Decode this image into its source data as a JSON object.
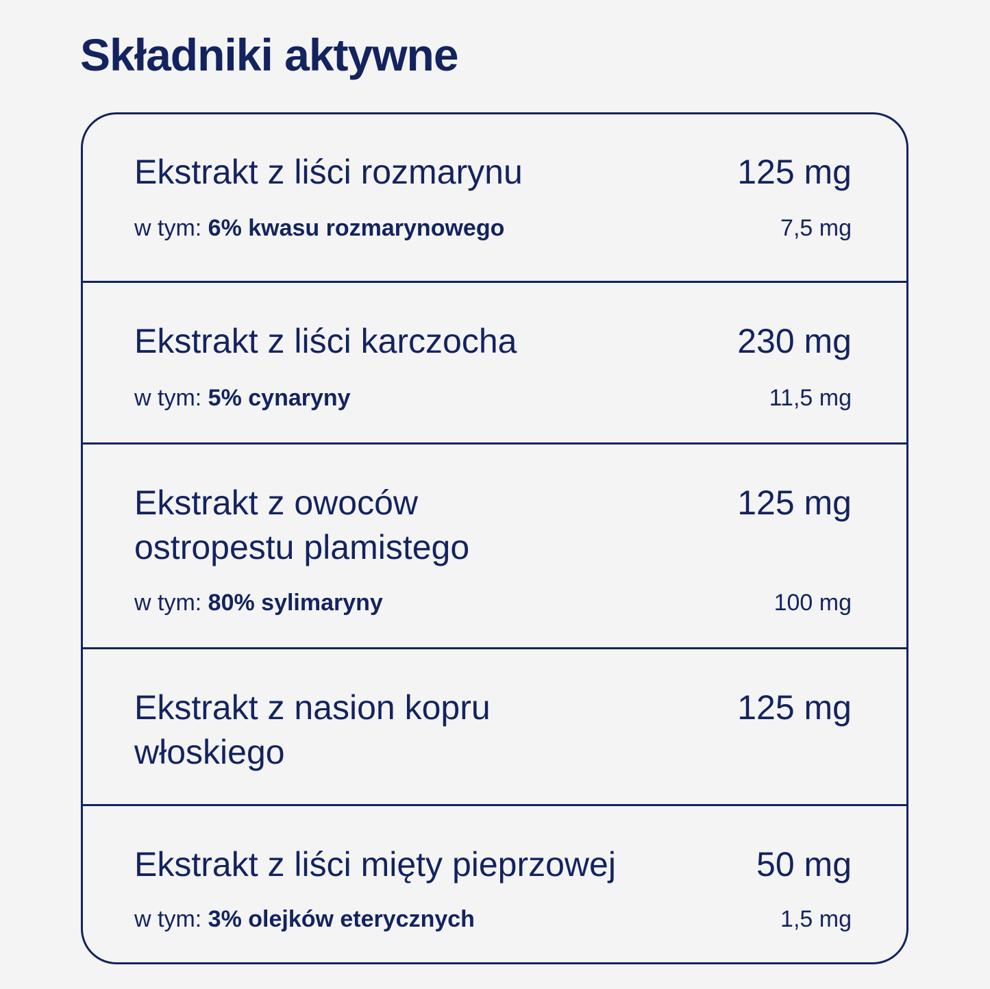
{
  "title": "Składniki aktywne",
  "ingredients": [
    {
      "name": "Ekstrakt z liści rozmarynu",
      "amount": "125 mg",
      "sub_prefix": "w tym:",
      "sub_detail": "6% kwasu rozmarynowego",
      "sub_amount": "7,5 mg"
    },
    {
      "name": "Ekstrakt z liści karczocha",
      "amount": "230 mg",
      "sub_prefix": "w tym:",
      "sub_detail": "5% cynaryny",
      "sub_amount": "11,5 mg"
    },
    {
      "name": "Ekstrakt z owoców ostropestu plamistego",
      "amount": "125 mg",
      "sub_prefix": "w tym:",
      "sub_detail": "80% sylimaryny",
      "sub_amount": "100 mg"
    },
    {
      "name": "Ekstrakt z nasion kopru włoskiego",
      "amount": "125 mg"
    },
    {
      "name": "Ekstrakt z liści mięty pieprzowej",
      "amount": "50 mg",
      "sub_prefix": "w tym:",
      "sub_detail": "3% olejków eterycznych",
      "sub_amount": "1,5 mg"
    }
  ],
  "colors": {
    "text": "#13235f",
    "background": "#f4f4f4"
  }
}
